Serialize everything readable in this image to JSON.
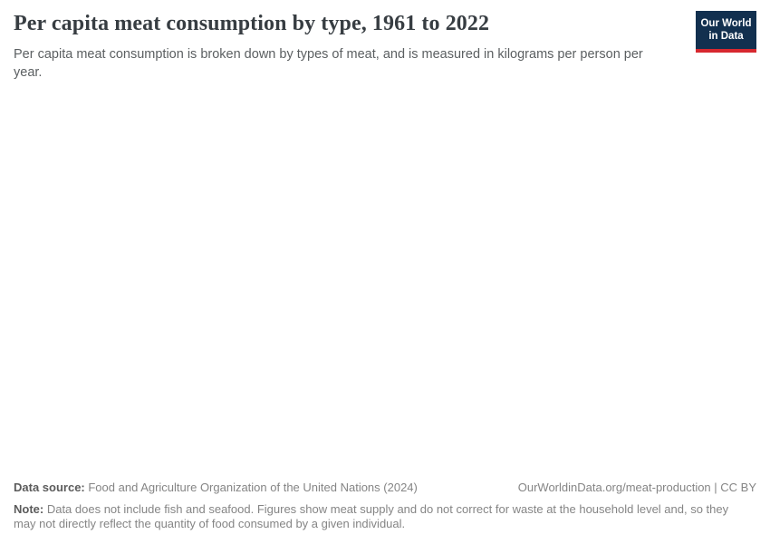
{
  "header": {
    "title": "Per capita meat consumption by type, 1961 to 2022",
    "subtitle": "Per capita meat consumption is broken down by types of meat, and is measured in kilograms per person per year.",
    "logo": {
      "line1": "Our World",
      "line2": "in Data",
      "bg_color": "#12304f",
      "bar_color": "#d7282f"
    }
  },
  "chart_data": {
    "type": "line",
    "title": "Per capita meat consumption by type, 1961 to 2022",
    "ylabel": "kilograms per person per year",
    "x_range": [
      1961,
      2022
    ],
    "series": [],
    "plot_area_rendered": false
  },
  "footer": {
    "data_source_label": "Data source:",
    "data_source_text": " Food and Agriculture Organization of the United Nations (2024)",
    "link_text": "OurWorldinData.org/meat-production | CC BY",
    "note_label": "Note:",
    "note_text": " Data does not include fish and seafood. Figures show meat supply and do not correct for waste at the household level and, so they may not directly reflect the quantity of food consumed by a given individual."
  },
  "colors": {
    "title": "#373d42",
    "subtitle": "#5b5f61",
    "footer_text": "#858585",
    "footer_bold": "#5b5b5b",
    "logo_navy": "#12304f",
    "logo_red": "#d7282f"
  }
}
